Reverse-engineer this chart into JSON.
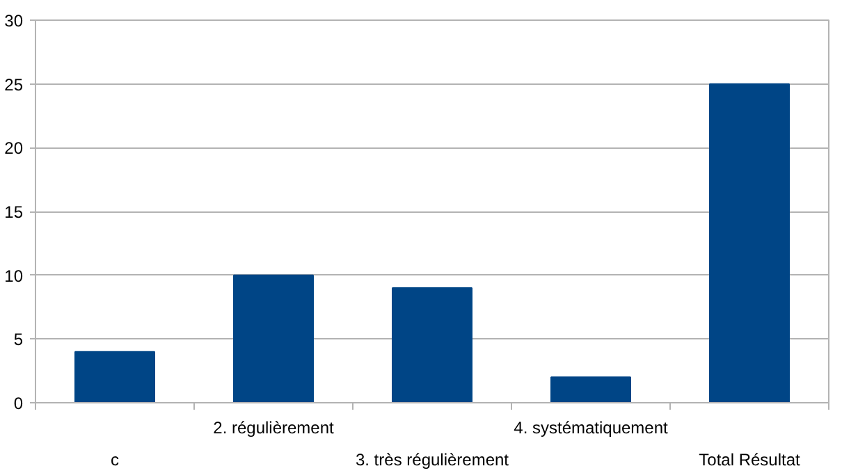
{
  "chart_data": {
    "type": "bar",
    "categories": [
      "c",
      "2. régulièrement",
      "3. très régulièrement",
      "4. systématiquement",
      "Total Résultat"
    ],
    "values": [
      4,
      10,
      9,
      2,
      25
    ],
    "color": "#004586",
    "ylim": [
      0,
      30
    ],
    "yticks": [
      0,
      5,
      10,
      15,
      20,
      25,
      30
    ],
    "grid": "y"
  }
}
